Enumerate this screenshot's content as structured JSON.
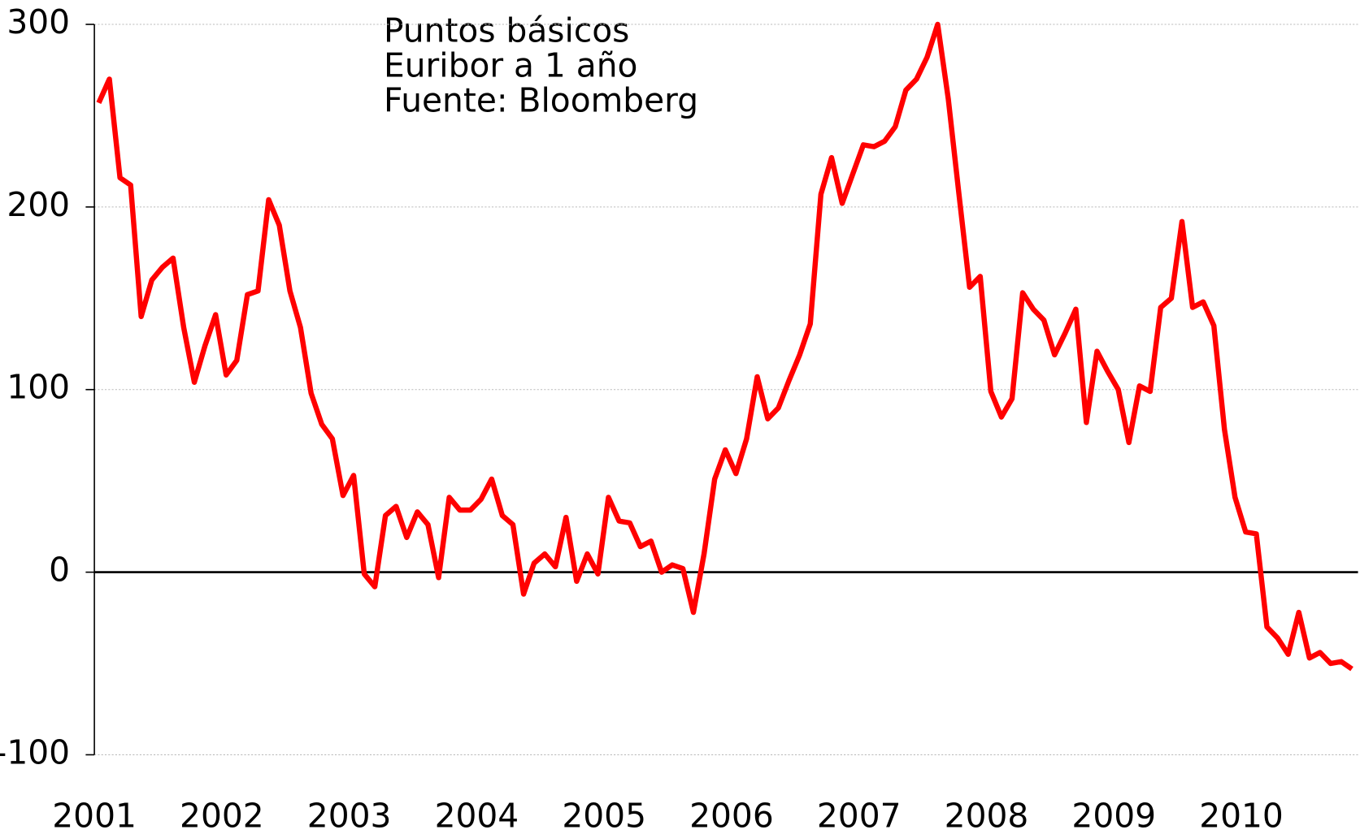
{
  "chart_data": {
    "type": "line",
    "annotations": [
      "Puntos básicos",
      "Euribor a 1 año",
      "Fuente: Bloomberg"
    ],
    "categories": [
      "2001",
      null,
      null,
      null,
      null,
      null,
      null,
      null,
      null,
      null,
      null,
      null,
      "2002",
      null,
      null,
      null,
      null,
      null,
      null,
      null,
      null,
      null,
      null,
      null,
      "2003",
      null,
      null,
      null,
      null,
      null,
      null,
      null,
      null,
      null,
      null,
      null,
      "2004",
      null,
      null,
      null,
      null,
      null,
      null,
      null,
      null,
      null,
      null,
      null,
      "2005",
      null,
      null,
      null,
      null,
      null,
      null,
      null,
      null,
      null,
      null,
      null,
      "2006",
      null,
      null,
      null,
      null,
      null,
      null,
      null,
      null,
      null,
      null,
      null,
      "2007",
      null,
      null,
      null,
      null,
      null,
      null,
      null,
      null,
      null,
      null,
      null,
      "2008",
      null,
      null,
      null,
      null,
      null,
      null,
      null,
      null,
      null,
      null,
      null,
      "2009",
      null,
      null,
      null,
      null,
      null,
      null,
      null,
      null,
      null,
      null,
      null,
      "2010",
      null,
      null,
      null,
      null,
      null,
      null,
      null,
      null,
      null,
      null
    ],
    "series": [
      {
        "color": "#ff0000",
        "values": [
          257,
          270,
          216,
          212,
          140,
          160,
          167,
          172,
          134,
          104,
          124,
          141,
          108,
          116,
          152,
          154,
          204,
          190,
          154,
          134,
          98,
          81,
          73,
          42,
          53,
          -1,
          -8,
          31,
          36,
          19,
          33,
          26,
          -3,
          41,
          34,
          34,
          40,
          51,
          31,
          26,
          -12,
          5,
          10,
          3,
          30,
          -5,
          10,
          -1,
          41,
          28,
          27,
          14,
          17,
          0,
          4,
          2,
          -22,
          10,
          51,
          67,
          54,
          73,
          107,
          84,
          90,
          105,
          119,
          136,
          207,
          227,
          202,
          218,
          234,
          233,
          236,
          244,
          264,
          270,
          282,
          300,
          259,
          207,
          156,
          162,
          99,
          85,
          95,
          153,
          144,
          138,
          119,
          131,
          144,
          82,
          121,
          110,
          100,
          71,
          102,
          99,
          145,
          150,
          192,
          145,
          148,
          135,
          78,
          41,
          22,
          21,
          -30,
          -36,
          -45,
          -22,
          -47,
          -44,
          -50,
          -49,
          -53
        ]
      }
    ],
    "ylim": [
      -100,
      300
    ],
    "yticks": [
      -100,
      0,
      100,
      200,
      300
    ],
    "grid": true
  }
}
